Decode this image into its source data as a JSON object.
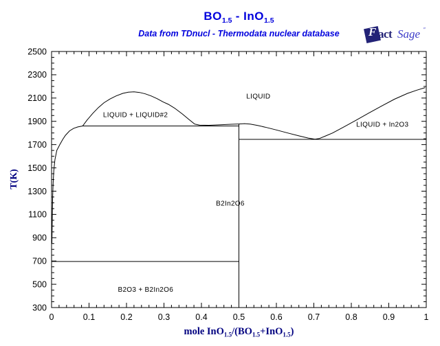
{
  "header": {
    "title_parts": [
      {
        "t": "BO"
      },
      {
        "t": "1.5",
        "sub": true
      },
      {
        "t": " - InO"
      },
      {
        "t": "1.5",
        "sub": true
      }
    ],
    "subtitle": "Data from TDnucl - Thermodata nuclear database"
  },
  "logo": {
    "f": "F",
    "act": "act",
    "sage": "Sage",
    "mark": "″"
  },
  "chart_data": {
    "type": "line",
    "title": "BO1.5 - InO1.5",
    "subtitle": "Data from TDnucl - Thermodata nuclear database",
    "xlabel": "mole InO1.5/(BO1.5+InO1.5)",
    "xlabel_parts": [
      {
        "t": "mole InO"
      },
      {
        "t": "1.5",
        "sub": true
      },
      {
        "t": "/(BO"
      },
      {
        "t": "1.5",
        "sub": true
      },
      {
        "t": "+InO"
      },
      {
        "t": "1.5",
        "sub": true
      },
      {
        "t": ")"
      }
    ],
    "ylabel": "T(K)",
    "xlim": [
      0,
      1
    ],
    "ylim": [
      300,
      2500
    ],
    "grid": false,
    "legend": "none",
    "axis_color": "#000000",
    "curve_color": "#000000",
    "x_ticks": [
      {
        "v": 0.0,
        "label": "0"
      },
      {
        "v": 0.1,
        "label": "0.1"
      },
      {
        "v": 0.2,
        "label": "0.2"
      },
      {
        "v": 0.3,
        "label": "0.3"
      },
      {
        "v": 0.4,
        "label": "0.4"
      },
      {
        "v": 0.5,
        "label": "0.5"
      },
      {
        "v": 0.6,
        "label": "0.6"
      },
      {
        "v": 0.7,
        "label": "0.7"
      },
      {
        "v": 0.8,
        "label": "0.8"
      },
      {
        "v": 0.9,
        "label": "0.9"
      },
      {
        "v": 1.0,
        "label": "1"
      }
    ],
    "x_minor_step": 0.02,
    "y_ticks": [
      {
        "v": 2500,
        "label": "2500"
      },
      {
        "v": 2300,
        "label": "2300"
      },
      {
        "v": 2100,
        "label": "2100"
      },
      {
        "v": 1900,
        "label": "1900"
      },
      {
        "v": 1700,
        "label": "1700"
      },
      {
        "v": 1500,
        "label": "1500"
      },
      {
        "v": 1300,
        "label": "1300"
      },
      {
        "v": 1100,
        "label": "1100"
      },
      {
        "v": 900,
        "label": "900"
      },
      {
        "v": 700,
        "label": "700"
      },
      {
        "v": 500,
        "label": "500"
      },
      {
        "v": 300,
        "label": "300"
      }
    ],
    "y_minor_step": 50,
    "series": [
      {
        "name": "liquidus-left-and-miscibility-dome",
        "points": [
          [
            0.001,
            850
          ],
          [
            0.002,
            1100
          ],
          [
            0.003,
            1250
          ],
          [
            0.004,
            1360
          ],
          [
            0.006,
            1480
          ],
          [
            0.009,
            1570
          ],
          [
            0.014,
            1650
          ],
          [
            0.022,
            1700
          ],
          [
            0.03,
            1745
          ],
          [
            0.037,
            1780
          ],
          [
            0.048,
            1818
          ],
          [
            0.059,
            1840
          ],
          [
            0.07,
            1852
          ],
          [
            0.083,
            1860
          ],
          [
            0.095,
            1912
          ],
          [
            0.11,
            1968
          ],
          [
            0.125,
            2018
          ],
          [
            0.14,
            2060
          ],
          [
            0.156,
            2092
          ],
          [
            0.172,
            2118
          ],
          [
            0.19,
            2140
          ],
          [
            0.205,
            2150
          ],
          [
            0.22,
            2153
          ],
          [
            0.235,
            2148
          ],
          [
            0.25,
            2136
          ],
          [
            0.266,
            2118
          ],
          [
            0.282,
            2094
          ],
          [
            0.298,
            2066
          ],
          [
            0.312,
            2046
          ],
          [
            0.33,
            2010
          ],
          [
            0.349,
            1963
          ],
          [
            0.366,
            1918
          ],
          [
            0.382,
            1876
          ],
          [
            0.395,
            1868
          ],
          [
            0.42,
            1866
          ],
          [
            0.45,
            1870
          ],
          [
            0.48,
            1875
          ],
          [
            0.5,
            1877
          ]
        ]
      },
      {
        "name": "liquidus-right",
        "points": [
          [
            0.5,
            1877
          ],
          [
            0.515,
            1880
          ],
          [
            0.53,
            1876
          ],
          [
            0.55,
            1864
          ],
          [
            0.57,
            1850
          ],
          [
            0.6,
            1826
          ],
          [
            0.63,
            1800
          ],
          [
            0.66,
            1775
          ],
          [
            0.685,
            1756
          ],
          [
            0.703,
            1746
          ],
          [
            0.715,
            1753
          ],
          [
            0.73,
            1772
          ],
          [
            0.75,
            1800
          ],
          [
            0.78,
            1852
          ],
          [
            0.81,
            1905
          ],
          [
            0.845,
            1968
          ],
          [
            0.88,
            2030
          ],
          [
            0.915,
            2090
          ],
          [
            0.95,
            2140
          ],
          [
            0.975,
            2168
          ],
          [
            0.997,
            2190
          ]
        ]
      },
      {
        "name": "monotectic-line-1860K",
        "points": [
          [
            0.083,
            1860
          ],
          [
            0.5,
            1860
          ]
        ]
      },
      {
        "name": "eutectic-line-1745K",
        "points": [
          [
            0.5,
            1745
          ],
          [
            1.0,
            1745
          ]
        ]
      },
      {
        "name": "eutectic-line-700K",
        "points": [
          [
            0.0,
            696
          ],
          [
            0.5,
            696
          ]
        ]
      },
      {
        "name": "B2In2O6-compound-line",
        "points": [
          [
            0.5,
            300
          ],
          [
            0.5,
            1877
          ]
        ]
      }
    ],
    "region_labels": [
      {
        "text": "LIQUID",
        "x": 0.552,
        "y": 2117
      },
      {
        "text": "LIQUID + LIQUID#2",
        "x": 0.224,
        "y": 1957
      },
      {
        "text": "LIQUID + In2O3",
        "x": 0.883,
        "y": 1875
      },
      {
        "text": "B2In2O6",
        "x": 0.477,
        "y": 1196
      },
      {
        "text": "B2O3 + B2In2O6",
        "x": 0.251,
        "y": 455
      }
    ]
  }
}
